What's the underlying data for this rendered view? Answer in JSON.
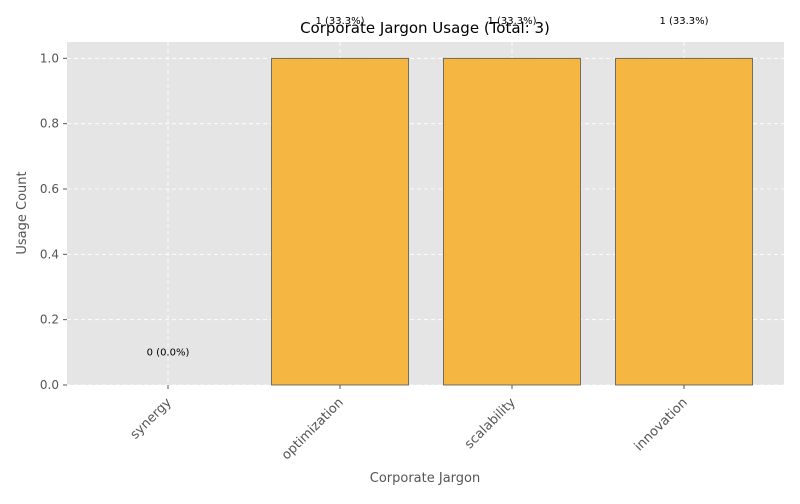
{
  "chart_data": {
    "type": "bar",
    "title": "Corporate Jargon Usage (Total: 3)",
    "xlabel": "Corporate Jargon",
    "ylabel": "Usage Count",
    "categories": [
      "synergy",
      "optimization",
      "scalability",
      "innovation"
    ],
    "values": [
      0,
      1,
      1,
      1
    ],
    "data_labels": [
      "0 (0.0%)",
      "1 (33.3%)",
      "1 (33.3%)",
      "1 (33.3%)"
    ],
    "ylim": [
      0,
      1.05
    ],
    "yticks": [
      "0.0",
      "0.2",
      "0.4",
      "0.6",
      "0.8",
      "1.0"
    ],
    "grid": true,
    "colors": {
      "bar_fill": "#f5b642",
      "bar_edge": "#555555",
      "plot_bg": "#e5e5e5",
      "grid": "#ffffff",
      "text": "#555555",
      "title": "#000000"
    }
  }
}
